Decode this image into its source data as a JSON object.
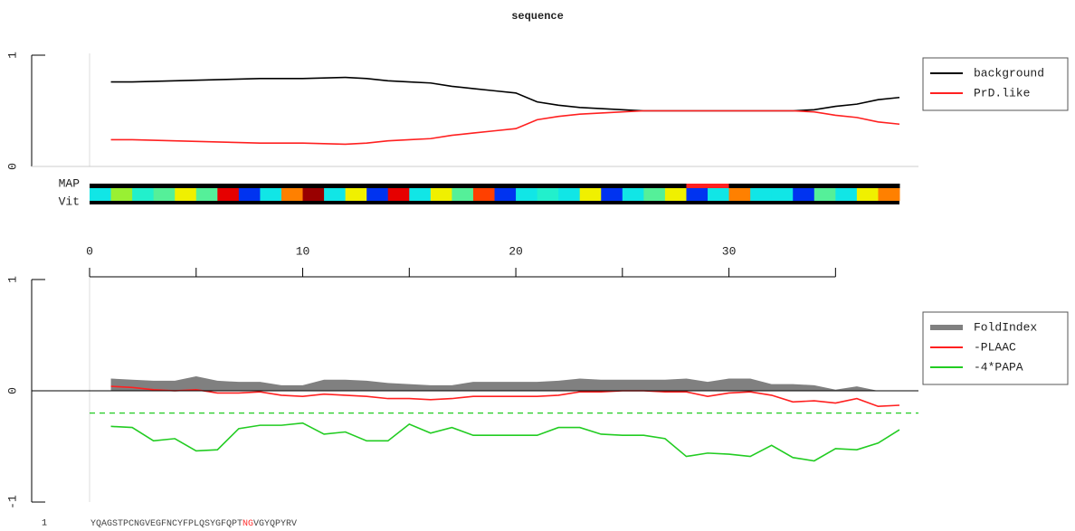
{
  "chart_data": [
    {
      "type": "line",
      "title": "sequence",
      "x": [
        1,
        2,
        3,
        4,
        5,
        6,
        7,
        8,
        9,
        10,
        11,
        12,
        13,
        14,
        15,
        16,
        17,
        18,
        19,
        20,
        21,
        22,
        23,
        24,
        25,
        26,
        27,
        28,
        29,
        30,
        31,
        32,
        33,
        34,
        35,
        36,
        37,
        38
      ],
      "xlim": [
        0,
        38
      ],
      "ylim": [
        0,
        1
      ],
      "yticks": [
        0,
        1
      ],
      "legend": "top-right",
      "series": [
        {
          "name": "background",
          "color": "#000000",
          "values": [
            0.76,
            0.76,
            0.765,
            0.77,
            0.775,
            0.78,
            0.785,
            0.79,
            0.79,
            0.79,
            0.795,
            0.8,
            0.79,
            0.77,
            0.76,
            0.75,
            0.72,
            0.7,
            0.68,
            0.66,
            0.58,
            0.55,
            0.53,
            0.52,
            0.51,
            0.5,
            0.5,
            0.5,
            0.5,
            0.5,
            0.5,
            0.5,
            0.5,
            0.51,
            0.54,
            0.56,
            0.6,
            0.62
          ]
        },
        {
          "name": "PrD.like",
          "color": "#ff2020",
          "values": [
            0.24,
            0.24,
            0.235,
            0.23,
            0.225,
            0.22,
            0.215,
            0.21,
            0.21,
            0.21,
            0.205,
            0.2,
            0.21,
            0.23,
            0.24,
            0.25,
            0.28,
            0.3,
            0.32,
            0.34,
            0.42,
            0.45,
            0.47,
            0.48,
            0.49,
            0.5,
            0.5,
            0.5,
            0.5,
            0.5,
            0.5,
            0.5,
            0.5,
            0.49,
            0.46,
            0.44,
            0.4,
            0.38
          ]
        }
      ]
    },
    {
      "type": "heatmap",
      "xlim": [
        0,
        38
      ],
      "xticks": [
        0,
        10,
        20,
        30
      ],
      "minor_xticks": [
        5,
        15,
        25,
        35
      ],
      "rows": [
        {
          "label": "MAP",
          "colors": [
            "#000000",
            "#000000",
            "#000000",
            "#000000",
            "#000000",
            "#000000",
            "#000000",
            "#000000",
            "#000000",
            "#000000",
            "#000000",
            "#000000",
            "#000000",
            "#000000",
            "#000000",
            "#000000",
            "#000000",
            "#000000",
            "#000000",
            "#000000",
            "#000000",
            "#000000",
            "#000000",
            "#000000",
            "#000000",
            "#000000",
            "#000000",
            "#000000",
            "#ff2020",
            "#ff2020",
            "#000000",
            "#000000",
            "#000000",
            "#000000",
            "#000000",
            "#000000",
            "#000000",
            "#000000"
          ]
        },
        {
          "label": "Vit",
          "colors": [
            "#11e6e6",
            "#99f033",
            "#22f0cc",
            "#55f099",
            "#f0f000",
            "#55f099",
            "#e60000",
            "#0033f0",
            "#11e6e6",
            "#ff8000",
            "#990000",
            "#11e6e6",
            "#f0f000",
            "#0033f0",
            "#e60000",
            "#11e6e6",
            "#f0f000",
            "#55f099",
            "#ff4000",
            "#0033f0",
            "#11e6e6",
            "#22f0cc",
            "#11e6e6",
            "#f0f000",
            "#0033f0",
            "#11e6e6",
            "#55f099",
            "#f0f000",
            "#0033f0",
            "#11e6e6",
            "#ff8000",
            "#11e6e6",
            "#11e6e6",
            "#0033f0",
            "#55f099",
            "#11e6e6",
            "#f0f000",
            "#ff8000"
          ]
        }
      ]
    },
    {
      "type": "line",
      "x": [
        1,
        2,
        3,
        4,
        5,
        6,
        7,
        8,
        9,
        10,
        11,
        12,
        13,
        14,
        15,
        16,
        17,
        18,
        19,
        20,
        21,
        22,
        23,
        24,
        25,
        26,
        27,
        28,
        29,
        30,
        31,
        32,
        33,
        34,
        35,
        36,
        37,
        38
      ],
      "xlim": [
        0,
        38
      ],
      "ylim": [
        -1,
        1
      ],
      "yticks": [
        -1,
        0,
        1
      ],
      "legend": "right",
      "threshold": {
        "value": -0.2,
        "color": "#22cc22"
      },
      "series": [
        {
          "name": "FoldIndex",
          "color": "#808080",
          "style": "area",
          "values": [
            0.11,
            0.1,
            0.09,
            0.09,
            0.13,
            0.09,
            0.08,
            0.08,
            0.05,
            0.05,
            0.1,
            0.1,
            0.09,
            0.07,
            0.06,
            0.05,
            0.05,
            0.08,
            0.08,
            0.08,
            0.08,
            0.09,
            0.11,
            0.1,
            0.1,
            0.1,
            0.1,
            0.11,
            0.08,
            0.11,
            0.11,
            0.06,
            0.06,
            0.05,
            0.01,
            0.04,
            0,
            0
          ]
        },
        {
          "name": "-PLAAC",
          "color": "#ff2020",
          "values": [
            0.04,
            0.03,
            0.01,
            0,
            0.01,
            -0.02,
            -0.02,
            -0.01,
            -0.04,
            -0.05,
            -0.03,
            -0.04,
            -0.05,
            -0.07,
            -0.07,
            -0.08,
            -0.07,
            -0.05,
            -0.05,
            -0.05,
            -0.05,
            -0.04,
            -0.01,
            -0.01,
            0,
            0,
            -0.01,
            -0.01,
            -0.05,
            -0.02,
            -0.01,
            -0.04,
            -0.1,
            -0.09,
            -0.11,
            -0.07,
            -0.14,
            -0.13
          ]
        },
        {
          "name": "-4*PAPA",
          "color": "#22cc22",
          "values": [
            -0.32,
            -0.33,
            -0.45,
            -0.43,
            -0.54,
            -0.53,
            -0.34,
            -0.31,
            -0.31,
            -0.29,
            -0.39,
            -0.37,
            -0.45,
            -0.45,
            -0.3,
            -0.38,
            -0.33,
            -0.4,
            -0.4,
            -0.4,
            -0.4,
            -0.33,
            -0.33,
            -0.39,
            -0.4,
            -0.4,
            -0.43,
            -0.59,
            -0.56,
            -0.57,
            -0.59,
            -0.49,
            -0.6,
            -0.63,
            -0.52,
            -0.53,
            -0.47,
            -0.35
          ]
        }
      ],
      "sequence": {
        "number": "1",
        "parts": [
          {
            "text": "YQAGSTPCNGVEGFNCYFPLQSYGFQPT",
            "color": "#444444"
          },
          {
            "text": "NG",
            "color": "#ff3030"
          },
          {
            "text": "VGYQPYRV",
            "color": "#444444"
          }
        ]
      }
    }
  ]
}
